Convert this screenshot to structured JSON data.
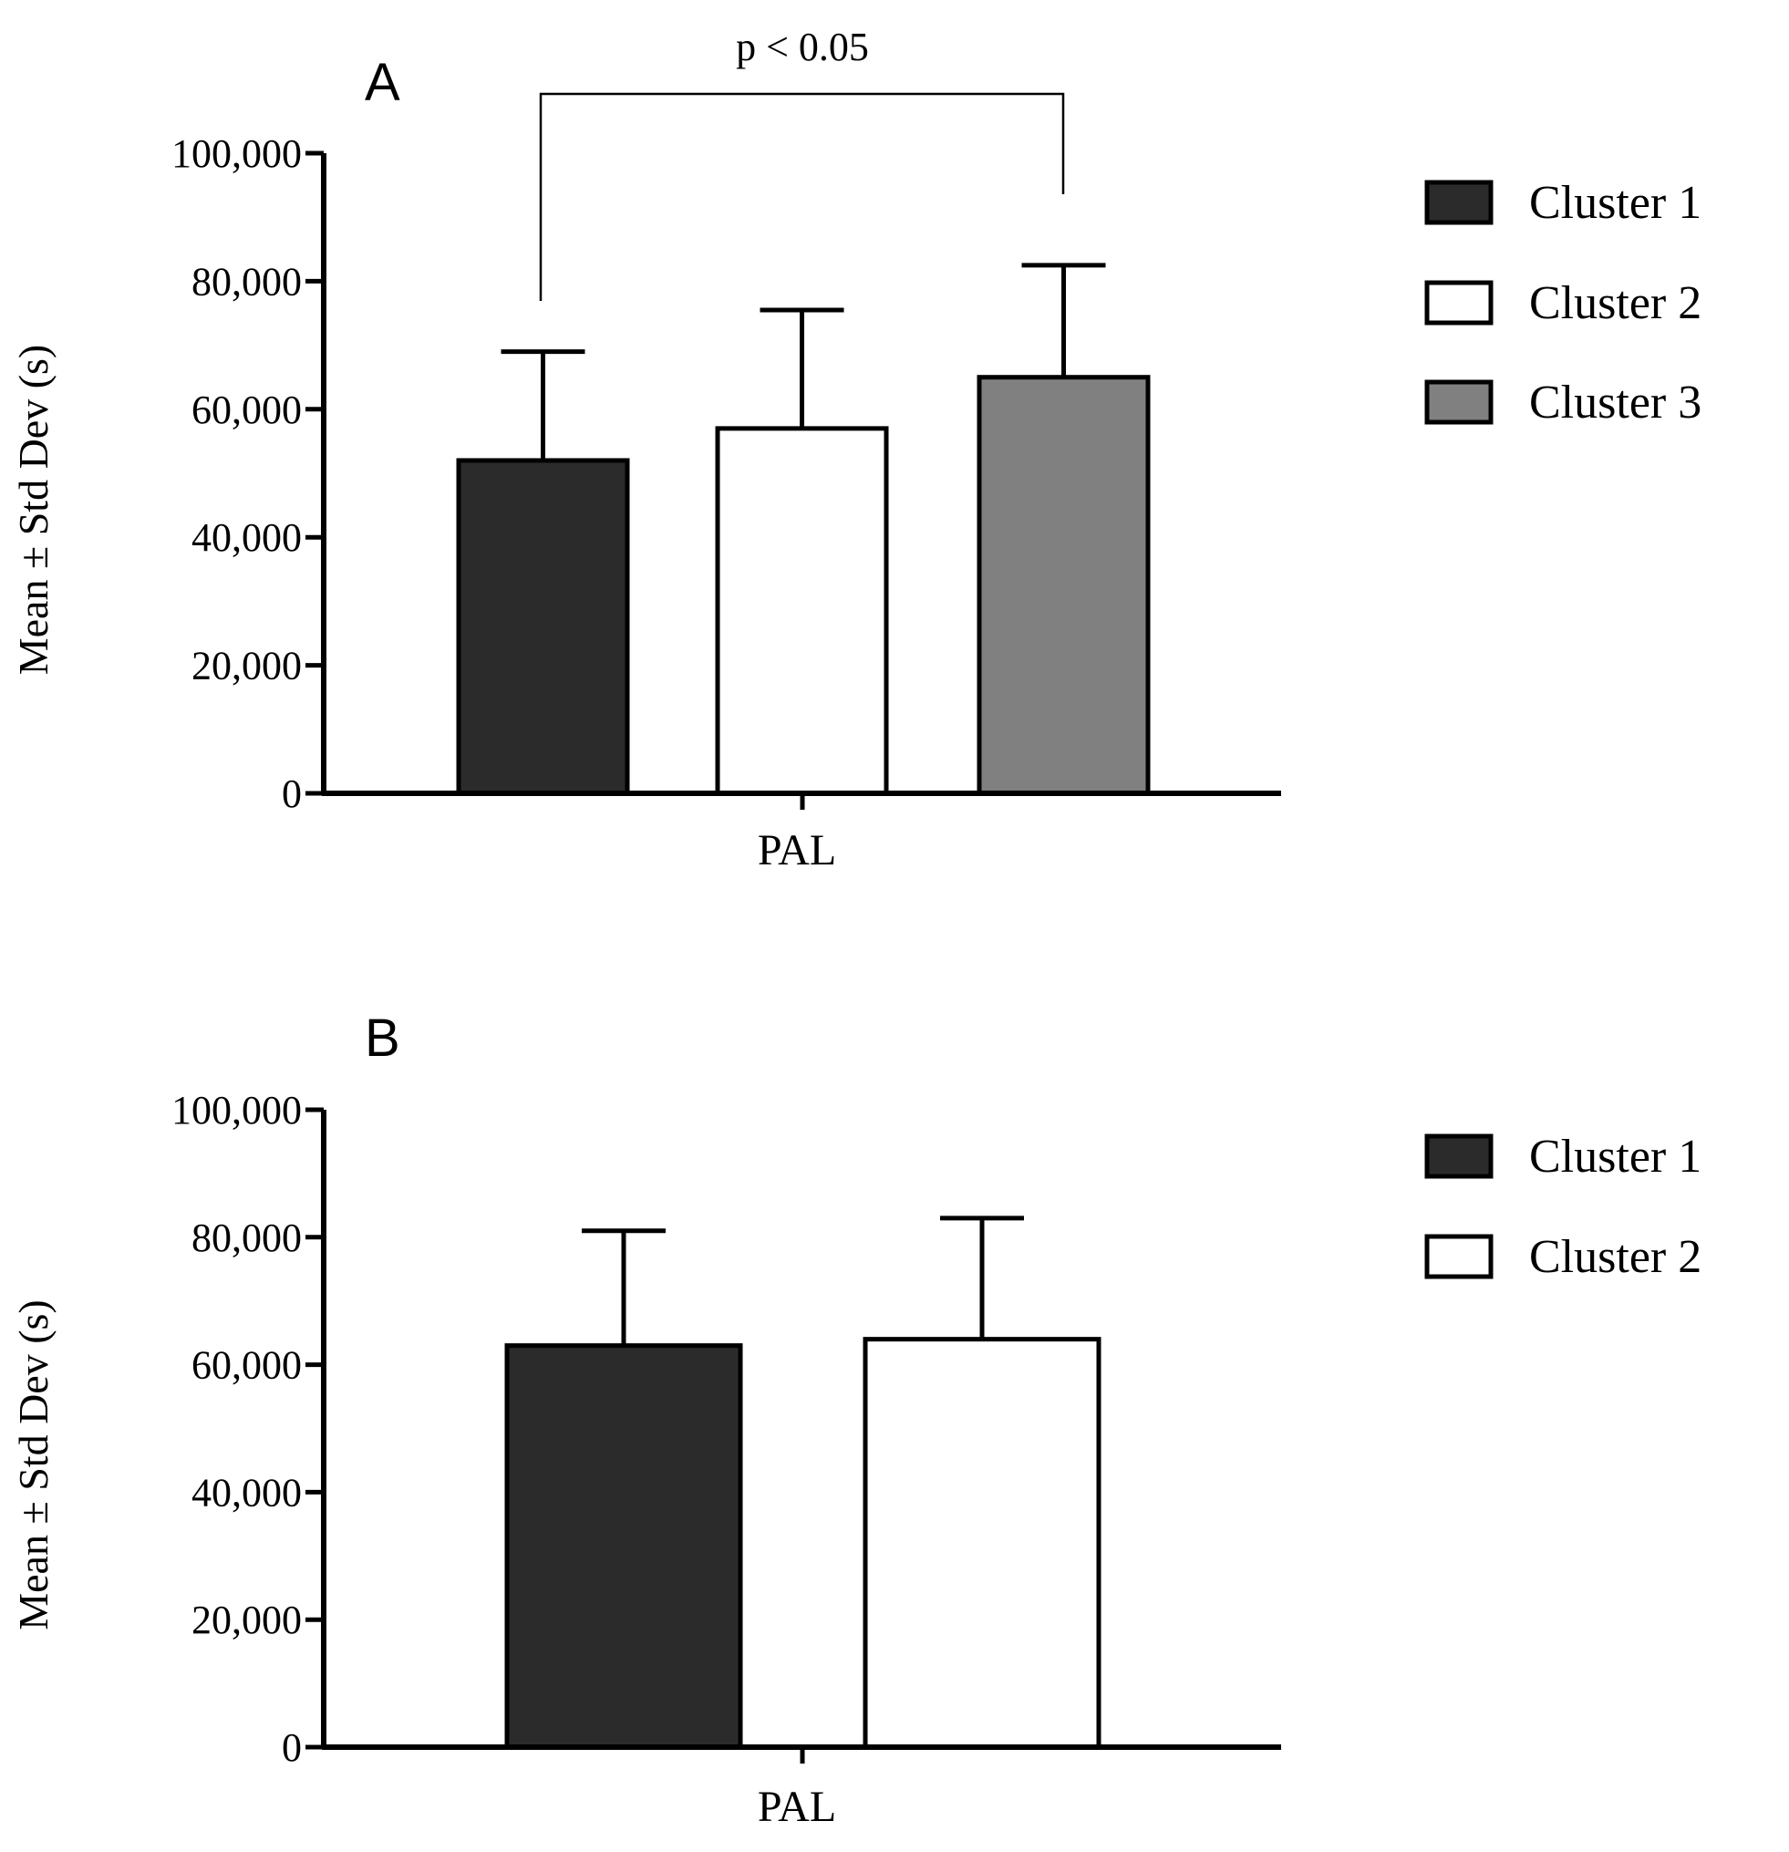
{
  "colors": {
    "cluster_1": "#2b2b2b",
    "cluster_2": "#ffffff",
    "cluster_3": "#808080",
    "stroke": "#000000"
  },
  "chart_data": [
    {
      "type": "bar",
      "panel_label": "A",
      "categories": [
        "PAL"
      ],
      "xlabel": "PAL",
      "ylabel": "Mean ± Std Dev (s)",
      "ylim": [
        0,
        100000
      ],
      "yticks": [
        0,
        20000,
        40000,
        60000,
        80000,
        100000
      ],
      "ytick_labels": [
        "0",
        "20,000",
        "40,000",
        "60,000",
        "80,000",
        "100,000"
      ],
      "series": [
        {
          "name": "Cluster 1",
          "values": [
            52000
          ],
          "error": [
            17000
          ],
          "color": "#2b2b2b"
        },
        {
          "name": "Cluster 2",
          "values": [
            57000
          ],
          "error": [
            18500
          ],
          "color": "#ffffff"
        },
        {
          "name": "Cluster 3",
          "values": [
            65000
          ],
          "error": [
            17500
          ],
          "color": "#808080"
        }
      ],
      "significance": {
        "label": "p < 0.05",
        "from": "Cluster 1",
        "to": "Cluster 3"
      },
      "legend": [
        "Cluster 1",
        "Cluster 2",
        "Cluster 3"
      ],
      "legend_position": "right"
    },
    {
      "type": "bar",
      "panel_label": "B",
      "categories": [
        "PAL"
      ],
      "xlabel": "PAL",
      "ylabel": "Mean ± Std Dev (s)",
      "ylim": [
        0,
        100000
      ],
      "yticks": [
        0,
        20000,
        40000,
        60000,
        80000,
        100000
      ],
      "ytick_labels": [
        "0",
        "20,000",
        "40,000",
        "60,000",
        "80,000",
        "100,000"
      ],
      "series": [
        {
          "name": "Cluster 1",
          "values": [
            63000
          ],
          "error": [
            18000
          ],
          "color": "#2b2b2b"
        },
        {
          "name": "Cluster 2",
          "values": [
            64000
          ],
          "error": [
            19000
          ],
          "color": "#ffffff"
        }
      ],
      "legend": [
        "Cluster 1",
        "Cluster 2"
      ],
      "legend_position": "right"
    }
  ]
}
